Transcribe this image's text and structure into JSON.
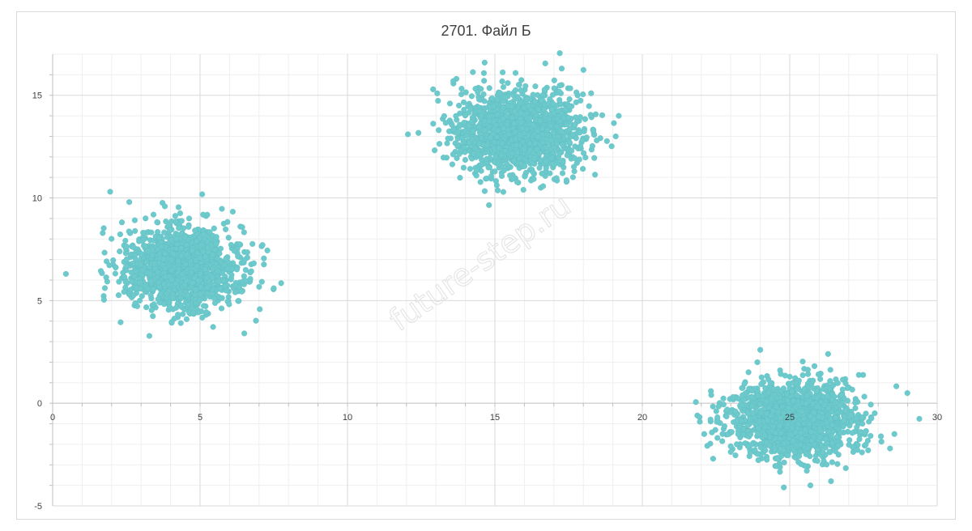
{
  "chart_data": {
    "type": "scatter",
    "title": "2701. Файл Б",
    "watermark": "future-step.ru",
    "xlim": [
      0,
      30
    ],
    "ylim": [
      -5,
      17
    ],
    "x_ticks": [
      0,
      5,
      10,
      15,
      20,
      25,
      30
    ],
    "y_ticks": [
      -5,
      0,
      5,
      10,
      15
    ],
    "grid": true,
    "legend": "none",
    "point_color": "#6cc9cc",
    "clusters": [
      {
        "center": [
          4.4,
          6.6
        ],
        "spread": [
          0.95,
          0.95
        ],
        "count": 1500
      },
      {
        "center": [
          15.8,
          13.2
        ],
        "spread": [
          1.05,
          1.0
        ],
        "count": 1500
      },
      {
        "center": [
          25.1,
          -0.8
        ],
        "spread": [
          1.1,
          0.9
        ],
        "count": 1500
      }
    ],
    "outliers": [
      [
        0.45,
        6.3
      ],
      [
        1.95,
        10.3
      ],
      [
        2.6,
        9.8
      ],
      [
        7.75,
        5.85
      ],
      [
        7.5,
        5.6
      ],
      [
        6.5,
        3.4
      ],
      [
        12.05,
        13.1
      ],
      [
        14.8,
        9.65
      ],
      [
        17.2,
        17.05
      ],
      [
        19.2,
        14.0
      ],
      [
        19.1,
        13.0
      ],
      [
        22.1,
        -1.5
      ],
      [
        22.4,
        -2.7
      ],
      [
        24.0,
        2.6
      ],
      [
        24.8,
        -4.1
      ],
      [
        25.7,
        -4.0
      ],
      [
        28.4,
        -2.2
      ],
      [
        28.55,
        -1.5
      ],
      [
        23.9,
        2.0
      ],
      [
        21.95,
        -0.9
      ],
      [
        26.3,
        2.4
      ]
    ]
  }
}
